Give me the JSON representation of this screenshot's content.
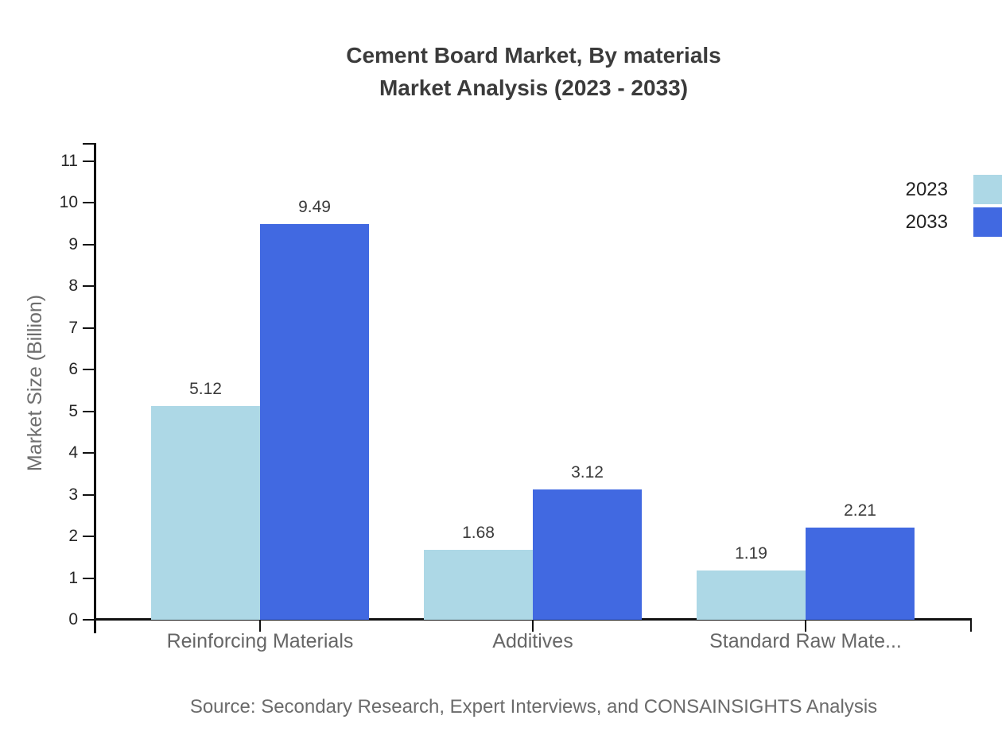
{
  "title": {
    "line1": "Cement Board Market, By materials",
    "line2": "Market Analysis (2023 - 2033)"
  },
  "source_note": "Source: Secondary Research, Expert Interviews, and CONSAINSIGHTS Analysis",
  "chart_data": {
    "type": "bar",
    "title": "Cement Board Market, By materials Market Analysis (2023 - 2033)",
    "categories": [
      "Reinforcing Materials",
      "Additives",
      "Standard Raw Mate..."
    ],
    "series": [
      {
        "name": "2023",
        "color": "#ADD8E6",
        "values": [
          5.12,
          1.68,
          1.19
        ]
      },
      {
        "name": "2033",
        "color": "#4169E1",
        "values": [
          9.49,
          3.12,
          2.21
        ]
      }
    ],
    "value_labels": [
      "5.12",
      "9.49",
      "1.68",
      "3.12",
      "1.19",
      "2.21"
    ],
    "xlabel": "",
    "ylabel": "Market Size (Billion)",
    "ylim": [
      0,
      11
    ],
    "yticks": [
      0,
      1,
      2,
      3,
      4,
      5,
      6,
      7,
      8,
      9,
      10,
      11
    ],
    "grid": false,
    "legend_position": "top-right",
    "bar_orientation": "vertical"
  },
  "colors": {
    "series_2023": "#ADD8E6",
    "series_2033": "#4169E1",
    "axis": "#111111",
    "title_text": "#3b3b3b",
    "muted_text": "#666666"
  }
}
